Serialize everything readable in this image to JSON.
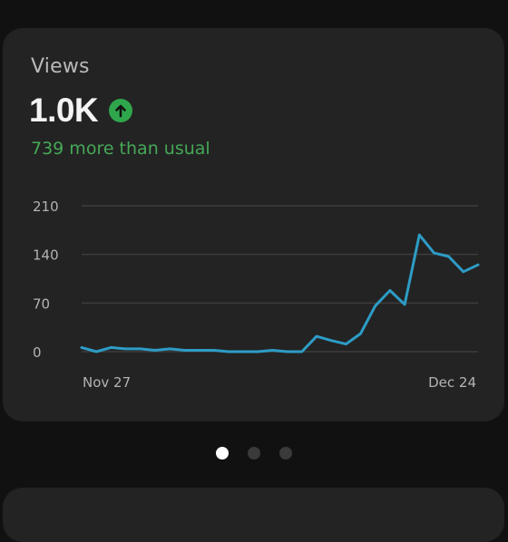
{
  "card": {
    "title": "Views",
    "value": "1.0K",
    "subtitle": "739 more than usual",
    "trend_icon": "arrow-up-circle-icon"
  },
  "colors": {
    "background": "#111111",
    "card": "#232323",
    "line": "#2d9cc6",
    "grid": "#3d3d3d",
    "positive": "#45a957"
  },
  "pager": {
    "count": 3,
    "active_index": 0
  },
  "chart_data": {
    "type": "line",
    "title": "",
    "xlabel": "",
    "ylabel": "",
    "ylim": [
      0,
      210
    ],
    "yticks": [
      0,
      70,
      140,
      210
    ],
    "ytick_labels": [
      "0",
      "70",
      "140",
      "210"
    ],
    "x_labels": [
      "Nov 27",
      "Dec 24"
    ],
    "grid": true,
    "series": [
      {
        "values": [
          6,
          0,
          6,
          4,
          4,
          2,
          4,
          2,
          2,
          2,
          0,
          0,
          0,
          2,
          0,
          0,
          22,
          16,
          11,
          26,
          66,
          88,
          68,
          168,
          142,
          137,
          115,
          125
        ]
      }
    ]
  }
}
